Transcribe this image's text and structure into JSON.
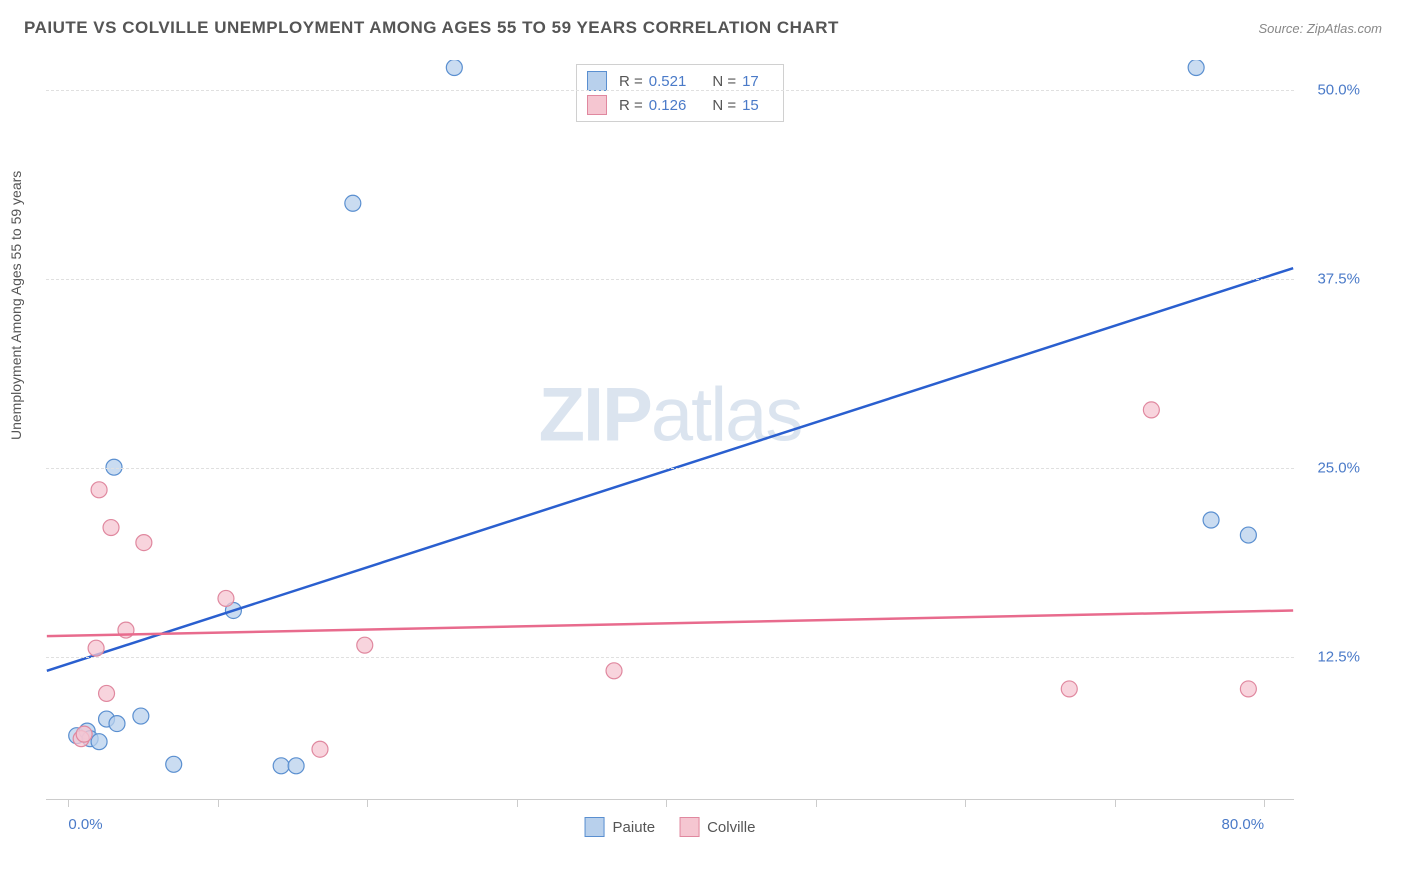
{
  "header": {
    "title": "PAIUTE VS COLVILLE UNEMPLOYMENT AMONG AGES 55 TO 59 YEARS CORRELATION CHART",
    "source": "Source: ZipAtlas.com"
  },
  "axes": {
    "y_label": "Unemployment Among Ages 55 to 59 years",
    "y_ticks": [
      {
        "value": 12.5,
        "label": "12.5%"
      },
      {
        "value": 25.0,
        "label": "25.0%"
      },
      {
        "value": 37.5,
        "label": "37.5%"
      },
      {
        "value": 50.0,
        "label": "50.0%"
      }
    ],
    "y_min": 3.0,
    "y_max": 52.0,
    "x_min": -1.5,
    "x_max": 82.0,
    "x_tick_positions": [
      0,
      10,
      20,
      30,
      40,
      50,
      60,
      70,
      80
    ],
    "x_labels": [
      {
        "value": 0,
        "label": "0.0%",
        "align": "left"
      },
      {
        "value": 80,
        "label": "80.0%",
        "align": "right"
      }
    ]
  },
  "series": [
    {
      "name": "Paiute",
      "fill": "#b8d0ec",
      "stroke": "#5a8fd0",
      "line_color": "#2a5fcf",
      "r_value": "0.521",
      "n_value": "17",
      "points": [
        {
          "x": 0.5,
          "y": 7.2
        },
        {
          "x": 1.2,
          "y": 7.5
        },
        {
          "x": 1.4,
          "y": 7.0
        },
        {
          "x": 2.0,
          "y": 6.8
        },
        {
          "x": 2.5,
          "y": 8.3
        },
        {
          "x": 3.2,
          "y": 8.0
        },
        {
          "x": 4.8,
          "y": 8.5
        },
        {
          "x": 3.0,
          "y": 25.0
        },
        {
          "x": 7.0,
          "y": 5.3
        },
        {
          "x": 11.0,
          "y": 15.5
        },
        {
          "x": 14.2,
          "y": 5.2
        },
        {
          "x": 15.2,
          "y": 5.2
        },
        {
          "x": 19.0,
          "y": 42.5
        },
        {
          "x": 25.8,
          "y": 51.5
        },
        {
          "x": 76.5,
          "y": 21.5
        },
        {
          "x": 79.0,
          "y": 20.5
        },
        {
          "x": 75.5,
          "y": 51.5
        }
      ],
      "regression": {
        "x1": -1.5,
        "y1": 11.5,
        "x2": 82.0,
        "y2": 38.2
      }
    },
    {
      "name": "Colville",
      "fill": "#f5c6d1",
      "stroke": "#e0889f",
      "line_color": "#e86b8d",
      "r_value": "0.126",
      "n_value": "15",
      "points": [
        {
          "x": 0.8,
          "y": 7.0
        },
        {
          "x": 1.0,
          "y": 7.3
        },
        {
          "x": 2.0,
          "y": 23.5
        },
        {
          "x": 1.8,
          "y": 13.0
        },
        {
          "x": 2.5,
          "y": 10.0
        },
        {
          "x": 2.8,
          "y": 21.0
        },
        {
          "x": 3.8,
          "y": 14.2
        },
        {
          "x": 5.0,
          "y": 20.0
        },
        {
          "x": 10.5,
          "y": 16.3
        },
        {
          "x": 16.8,
          "y": 6.3
        },
        {
          "x": 19.8,
          "y": 13.2
        },
        {
          "x": 36.5,
          "y": 11.5
        },
        {
          "x": 67.0,
          "y": 10.3
        },
        {
          "x": 72.5,
          "y": 28.8
        },
        {
          "x": 79.0,
          "y": 10.3
        }
      ],
      "regression": {
        "x1": -1.5,
        "y1": 13.8,
        "x2": 82.0,
        "y2": 15.5
      }
    }
  ],
  "styling": {
    "marker_radius": 8,
    "marker_opacity": 0.75,
    "line_width": 2.5,
    "grid_color": "#e0e0e0",
    "tick_color": "#4a7ac8",
    "background": "#ffffff"
  },
  "watermark": {
    "part1": "ZIP",
    "part2": "atlas"
  },
  "legend_bottom": [
    {
      "label": "Paiute",
      "fill": "#b8d0ec",
      "stroke": "#5a8fd0"
    },
    {
      "label": "Colville",
      "fill": "#f5c6d1",
      "stroke": "#e0889f"
    }
  ]
}
